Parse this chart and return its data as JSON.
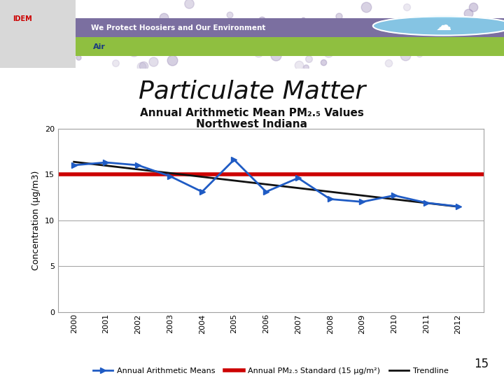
{
  "title_main": "Particulate Matter",
  "subtitle_line1": "Annual Arithmetic Mean PM₂.₅ Values",
  "subtitle_line2": "Northwest Indiana",
  "years": [
    2000,
    2001,
    2002,
    2003,
    2004,
    2005,
    2006,
    2007,
    2008,
    2009,
    2010,
    2011,
    2012
  ],
  "pm25_values": [
    16.0,
    16.3,
    16.0,
    14.8,
    13.1,
    16.6,
    13.1,
    14.6,
    12.3,
    12.0,
    12.7,
    11.9,
    11.5
  ],
  "standard_value": 15.0,
  "ylim": [
    0,
    20
  ],
  "yticks": [
    0,
    5,
    10,
    15,
    20
  ],
  "blue_color": "#1F5BC4",
  "red_color": "#CC0000",
  "black_color": "#111111",
  "bg_color": "#FFFFFF",
  "slide_bg": "#F0F0F0",
  "grid_color": "#A0A0A0",
  "banner_purple": "#7B68A0",
  "banner_green": "#90C040",
  "header_bg": "#E8E8E8",
  "ylabel": "Concentration (μg/m3)",
  "legend_labels": [
    "Annual Arithmetic Means",
    "Annual PM₂.₅ Standard (15 μg/m²)",
    "Trendline"
  ],
  "page_number": "15",
  "title_fontsize": 26,
  "subtitle_fontsize": 11,
  "axis_label_fontsize": 9,
  "tick_fontsize": 8,
  "legend_fontsize": 8
}
